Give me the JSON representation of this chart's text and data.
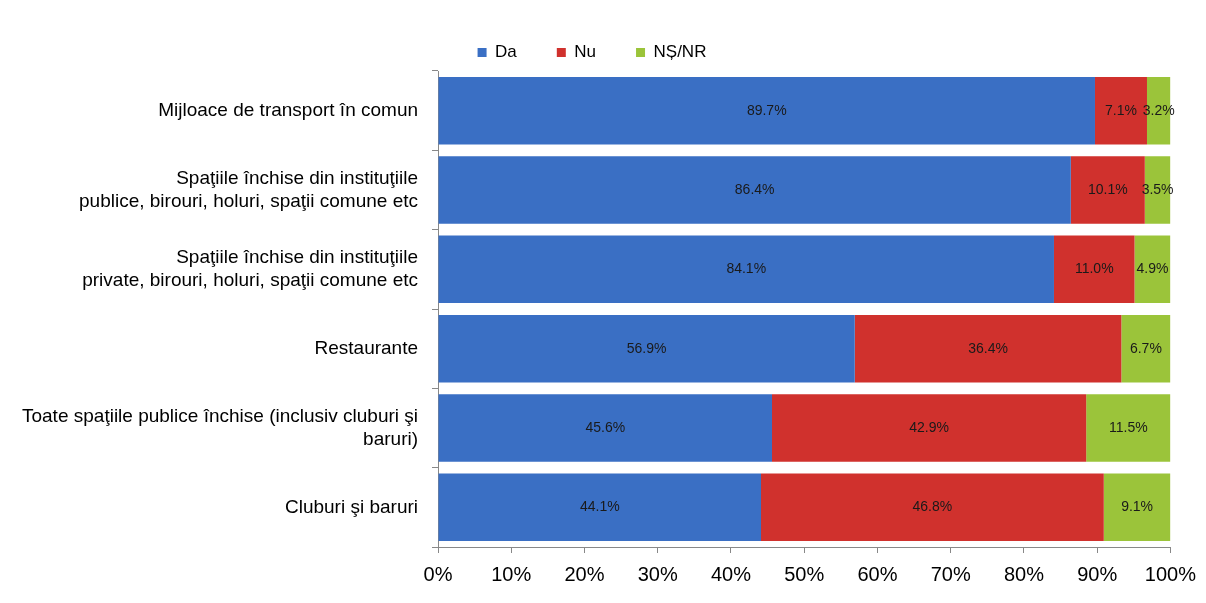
{
  "chart_data": {
    "type": "bar",
    "orientation": "horizontal",
    "stacked": true,
    "grid": false,
    "legend": "top",
    "categories": [
      "Mijloace de transport în comun",
      "Spaţiile închise din instituţiile\npublice, birouri, holuri, spaţii comune etc",
      "Spaţiile închise din instituţiile\nprivate, birouri, holuri, spaţii comune etc",
      "Restaurante",
      "Toate spaţiile publice închise (inclusiv cluburi şi\nbaruri)",
      "Cluburi şi baruri"
    ],
    "series": [
      {
        "name": "Da",
        "color": "#3a6fc4",
        "values": [
          89.7,
          86.4,
          84.1,
          56.9,
          45.6,
          44.1
        ],
        "value_labels": [
          "89.7%",
          "86.4%",
          "84.1%",
          "56.9%",
          "45.6%",
          "44.1%"
        ]
      },
      {
        "name": "Nu",
        "color": "#d0312d",
        "values": [
          7.1,
          10.1,
          11.0,
          36.4,
          42.9,
          46.8
        ],
        "value_labels": [
          "7.1%",
          "10.1%",
          "11.0%",
          "36.4%",
          "42.9%",
          "46.8%"
        ]
      },
      {
        "name": "NȘ/NR",
        "color": "#9bc43a",
        "values": [
          3.2,
          3.5,
          4.9,
          6.7,
          11.5,
          9.1
        ],
        "value_labels": [
          "3.2%",
          "3.5%",
          "4.9%",
          "6.7%",
          "11.5%",
          "9.1%"
        ]
      }
    ],
    "xlim": [
      0,
      100
    ],
    "xticks": [
      {
        "value": 0,
        "label": "0%"
      },
      {
        "value": 10,
        "label": "10%"
      },
      {
        "value": 20,
        "label": "20%"
      },
      {
        "value": 30,
        "label": "30%"
      },
      {
        "value": 40,
        "label": "40%"
      },
      {
        "value": 50,
        "label": "50%"
      },
      {
        "value": 60,
        "label": "60%"
      },
      {
        "value": 70,
        "label": "70%"
      },
      {
        "value": 80,
        "label": "80%"
      },
      {
        "value": 90,
        "label": "90%"
      },
      {
        "value": 100,
        "label": "100%"
      }
    ]
  }
}
